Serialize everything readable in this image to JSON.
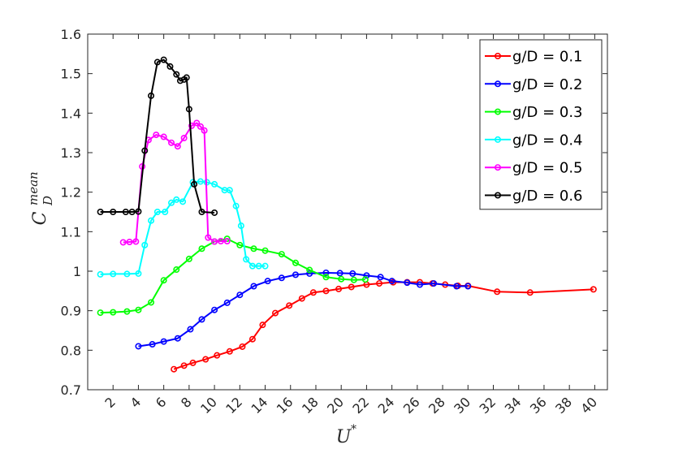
{
  "chart_data": {
    "type": "line",
    "xlabel": "U*",
    "ylabel": "C_D^mean",
    "xlim": [
      0,
      41
    ],
    "ylim": [
      0.7,
      1.6
    ],
    "xticks": [
      2,
      4,
      6,
      8,
      10,
      12,
      14,
      16,
      18,
      20,
      22,
      24,
      26,
      28,
      30,
      32,
      34,
      36,
      38,
      40
    ],
    "xtick_labels": [
      "2",
      "4",
      "6",
      "8",
      "10",
      "12",
      "14",
      "16",
      "18",
      "20",
      "22",
      "24",
      "26",
      "28",
      "30",
      "32",
      "34",
      "36",
      "38",
      "40"
    ],
    "yticks": [
      0.7,
      0.8,
      0.9,
      1.0,
      1.1,
      1.2,
      1.3,
      1.4,
      1.5,
      1.6
    ],
    "ytick_labels": [
      "0.7",
      "0.8",
      "0.9",
      "1",
      "1.1",
      "1.2",
      "1.3",
      "1.4",
      "1.5",
      "1.6"
    ],
    "grid": false,
    "legend_position": "top-right",
    "series": [
      {
        "name": "g/D = 0.1",
        "color": "#ff0000",
        "x": [
          6.8,
          7.6,
          8.3,
          9.3,
          10.2,
          11.2,
          12.2,
          13.0,
          13.8,
          14.8,
          15.9,
          16.9,
          17.8,
          18.8,
          19.8,
          20.8,
          22.0,
          23.0,
          24.1,
          25.2,
          26.2,
          27.2,
          28.2,
          29.2,
          30.0,
          32.3,
          34.9,
          39.9
        ],
        "y": [
          0.752,
          0.761,
          0.768,
          0.777,
          0.787,
          0.797,
          0.809,
          0.828,
          0.864,
          0.894,
          0.913,
          0.931,
          0.946,
          0.95,
          0.955,
          0.96,
          0.966,
          0.969,
          0.972,
          0.972,
          0.972,
          0.969,
          0.966,
          0.963,
          0.963,
          0.948,
          0.946,
          0.954
        ]
      },
      {
        "name": "g/D = 0.2",
        "color": "#0000ff",
        "x": [
          4.0,
          5.1,
          6.0,
          7.1,
          8.1,
          9.0,
          10.0,
          11.0,
          12.0,
          13.1,
          14.2,
          15.3,
          16.4,
          17.5,
          18.8,
          19.9,
          20.9,
          22.0,
          23.1,
          24.0,
          25.2,
          26.2,
          27.3,
          29.1,
          30.0
        ],
        "y": [
          0.81,
          0.815,
          0.822,
          0.83,
          0.853,
          0.878,
          0.902,
          0.92,
          0.94,
          0.962,
          0.975,
          0.983,
          0.991,
          0.994,
          0.996,
          0.995,
          0.994,
          0.989,
          0.985,
          0.975,
          0.971,
          0.966,
          0.969,
          0.962,
          0.962
        ]
      },
      {
        "name": "g/D = 0.3",
        "color": "#00ff00",
        "x": [
          1.0,
          2.0,
          3.1,
          4.0,
          5.0,
          6.0,
          7.0,
          8.0,
          9.0,
          10.0,
          11.0,
          12.0,
          13.1,
          14.0,
          15.3,
          16.4,
          17.5,
          18.8,
          20.0,
          21.0,
          21.9
        ],
        "y": [
          0.895,
          0.896,
          0.898,
          0.902,
          0.921,
          0.977,
          1.004,
          1.031,
          1.057,
          1.075,
          1.082,
          1.066,
          1.057,
          1.052,
          1.043,
          1.021,
          1.003,
          0.985,
          0.98,
          0.978,
          0.979
        ]
      },
      {
        "name": "g/D = 0.4",
        "color": "#00ffff",
        "x": [
          1.0,
          2.0,
          3.1,
          4.0,
          4.5,
          5.0,
          5.5,
          6.1,
          6.6,
          7.0,
          7.5,
          8.3,
          8.9,
          9.4,
          10.0,
          10.8,
          11.2,
          11.7,
          12.1,
          12.5,
          13.0,
          13.5,
          14.0
        ],
        "y": [
          0.992,
          0.993,
          0.993,
          0.994,
          1.066,
          1.128,
          1.15,
          1.15,
          1.173,
          1.181,
          1.176,
          1.225,
          1.227,
          1.225,
          1.22,
          1.205,
          1.205,
          1.165,
          1.115,
          1.03,
          1.013,
          1.013,
          1.013
        ]
      },
      {
        "name": "g/D = 0.5",
        "color": "#ff00ff",
        "x": [
          2.8,
          3.3,
          3.8,
          4.3,
          4.8,
          5.4,
          6.0,
          6.6,
          7.1,
          7.6,
          8.2,
          8.6,
          8.9,
          9.2,
          9.5,
          10.0,
          10.5,
          11.0
        ],
        "y": [
          1.073,
          1.074,
          1.075,
          1.265,
          1.332,
          1.345,
          1.34,
          1.325,
          1.316,
          1.337,
          1.368,
          1.375,
          1.366,
          1.356,
          1.085,
          1.075,
          1.076,
          1.076
        ]
      },
      {
        "name": "g/D = 0.6",
        "color": "#000000",
        "x": [
          1.0,
          2.0,
          3.0,
          3.5,
          4.0,
          4.5,
          5.0,
          5.5,
          6.0,
          6.5,
          7.0,
          7.3,
          7.6,
          7.8,
          8.0,
          8.4,
          9.0,
          10.0
        ],
        "y": [
          1.15,
          1.15,
          1.15,
          1.15,
          1.151,
          1.305,
          1.444,
          1.529,
          1.535,
          1.518,
          1.498,
          1.482,
          1.485,
          1.49,
          1.41,
          1.22,
          1.15,
          1.148
        ]
      }
    ]
  }
}
